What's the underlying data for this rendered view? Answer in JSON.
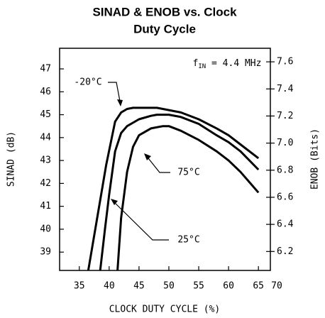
{
  "chart_data": {
    "type": "line",
    "title": [
      "SINAD & ENOB vs. Clock",
      "Duty Cycle"
    ],
    "xlabel": "CLOCK DUTY CYCLE (%)",
    "ylabel": "SINAD (dB)",
    "y2label": "ENOB (Bits)",
    "xlim": [
      31.7,
      67
    ],
    "xticks": [
      35,
      40,
      45,
      50,
      55,
      60,
      65,
      70
    ],
    "ylim": [
      38.2,
      47.9
    ],
    "yticks": [
      39,
      40,
      41,
      42,
      43,
      44,
      45,
      46,
      47
    ],
    "y2lim": [
      6.06,
      7.7
    ],
    "y2ticks": [
      6.2,
      6.4,
      6.6,
      6.8,
      7.0,
      7.2,
      7.4,
      7.6
    ],
    "grid": false,
    "annotation": {
      "base": "f",
      "sub": "IN",
      "rest": " = 4.4 MHz"
    },
    "series": [
      {
        "name": "-20°C",
        "color": "#000000",
        "x": [
          36.5,
          38,
          39.5,
          41,
          42,
          43,
          44,
          46,
          48,
          49,
          52,
          55,
          58,
          60,
          62,
          65
        ],
        "values": [
          38.2,
          40.5,
          42.8,
          44.7,
          45.1,
          45.25,
          45.3,
          45.3,
          45.3,
          45.25,
          45.1,
          44.8,
          44.4,
          44.1,
          43.7,
          43.1
        ]
      },
      {
        "name": "25°C",
        "color": "#000000",
        "x": [
          38.5,
          39.3,
          40,
          41,
          42,
          43,
          45,
          47,
          48,
          50,
          52,
          55,
          58,
          60,
          62,
          65
        ],
        "values": [
          38.2,
          40.0,
          41.5,
          43.4,
          44.2,
          44.5,
          44.8,
          44.95,
          45.0,
          45.0,
          44.9,
          44.6,
          44.1,
          43.8,
          43.4,
          42.6
        ]
      },
      {
        "name": "75°C",
        "color": "#000000",
        "x": [
          41.4,
          42,
          43,
          44,
          45,
          47,
          49,
          50,
          52,
          55,
          58,
          60,
          62,
          65
        ],
        "values": [
          38.2,
          40.5,
          42.5,
          43.6,
          44.1,
          44.4,
          44.5,
          44.5,
          44.3,
          43.9,
          43.4,
          43.0,
          42.5,
          41.6
        ]
      }
    ]
  }
}
